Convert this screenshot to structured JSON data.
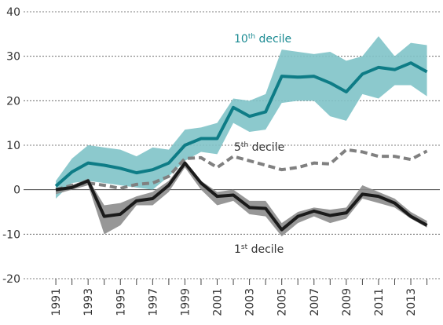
{
  "chart_data": {
    "type": "line",
    "x": [
      1991,
      1992,
      1993,
      1994,
      1995,
      1996,
      1997,
      1998,
      1999,
      2000,
      2001,
      2002,
      2003,
      2004,
      2005,
      2006,
      2007,
      2008,
      2009,
      2010,
      2011,
      2012,
      2013,
      2014
    ],
    "xlim": [
      1989,
      2014.8
    ],
    "xticks": [
      1991,
      1993,
      1995,
      1997,
      1999,
      2001,
      2003,
      2005,
      2007,
      2009,
      2011,
      2013
    ],
    "xminor_ticks": [
      1992,
      1994,
      1996,
      1998,
      2000,
      2002,
      2004,
      2006,
      2008,
      2010,
      2012,
      2014
    ],
    "ylim": [
      -20,
      40
    ],
    "yticks": [
      -20,
      -10,
      0,
      10,
      20,
      30,
      40
    ],
    "grid": true,
    "series": [
      {
        "label": {
          "main": "10",
          "sup": "th",
          "rest": " decile"
        },
        "color": "#0e7c86",
        "dashed": false,
        "band_color": "#7fc3c8",
        "values": [
          0.8,
          4,
          6,
          5.5,
          4.8,
          3.8,
          4.5,
          6,
          10,
          11.5,
          11.5,
          18.5,
          16.5,
          17.5,
          25.5,
          25.3,
          25.5,
          24,
          22,
          26,
          27.5,
          27,
          28.5,
          26.5
        ],
        "upper": [
          2,
          7,
          10,
          9.5,
          9,
          7.5,
          9.5,
          9,
          13.5,
          14,
          15,
          20.5,
          20,
          21.5,
          31.5,
          31,
          30.5,
          31,
          29,
          30,
          34.5,
          30,
          33,
          32.5
        ],
        "lower": [
          -2,
          1.5,
          2,
          1.5,
          1,
          0.5,
          0,
          3,
          6.5,
          8.5,
          8,
          15,
          13,
          13.5,
          19.5,
          20,
          20,
          16.5,
          15.5,
          21.5,
          20.5,
          23.5,
          23.5,
          21
        ]
      },
      {
        "label": {
          "main": "5",
          "sup": "th",
          "rest": " decile"
        },
        "color": "#808080",
        "dashed": true,
        "values": [
          0,
          1,
          1.5,
          1,
          0.3,
          1.2,
          1.5,
          3,
          7,
          7.2,
          5,
          7.5,
          6.5,
          5.5,
          4.5,
          5,
          6,
          5.8,
          9,
          8.5,
          7.5,
          7.5,
          6.8,
          8.7
        ]
      },
      {
        "label": {
          "main": "1",
          "sup": "st",
          "rest": " decile"
        },
        "color": "#1a1a1a",
        "dashed": false,
        "band_color": "#8c8c8c",
        "values": [
          0,
          0.5,
          2,
          -6,
          -5.5,
          -2.5,
          -2,
          1,
          6,
          1.5,
          -1.5,
          -1.2,
          -4,
          -4.2,
          -9,
          -6,
          -4.8,
          -5.8,
          -5.2,
          -1,
          -1.5,
          -3,
          -6,
          -8
        ],
        "upper": [
          0,
          1,
          2.5,
          -3.5,
          -3,
          -1.5,
          -0.5,
          2,
          6.5,
          2,
          -0.5,
          0,
          -2.5,
          -2.5,
          -7.5,
          -5,
          -4,
          -4.5,
          -4,
          1,
          -0.5,
          -2,
          -5,
          -7
        ],
        "lower": [
          -1,
          0,
          1,
          -10,
          -8,
          -3.5,
          -3.5,
          -0.5,
          5,
          0,
          -3.5,
          -2.5,
          -5.5,
          -6,
          -10.5,
          -7.5,
          -6,
          -7.5,
          -6.5,
          -2,
          -3,
          -4,
          -6.5,
          -8.5
        ]
      }
    ]
  }
}
